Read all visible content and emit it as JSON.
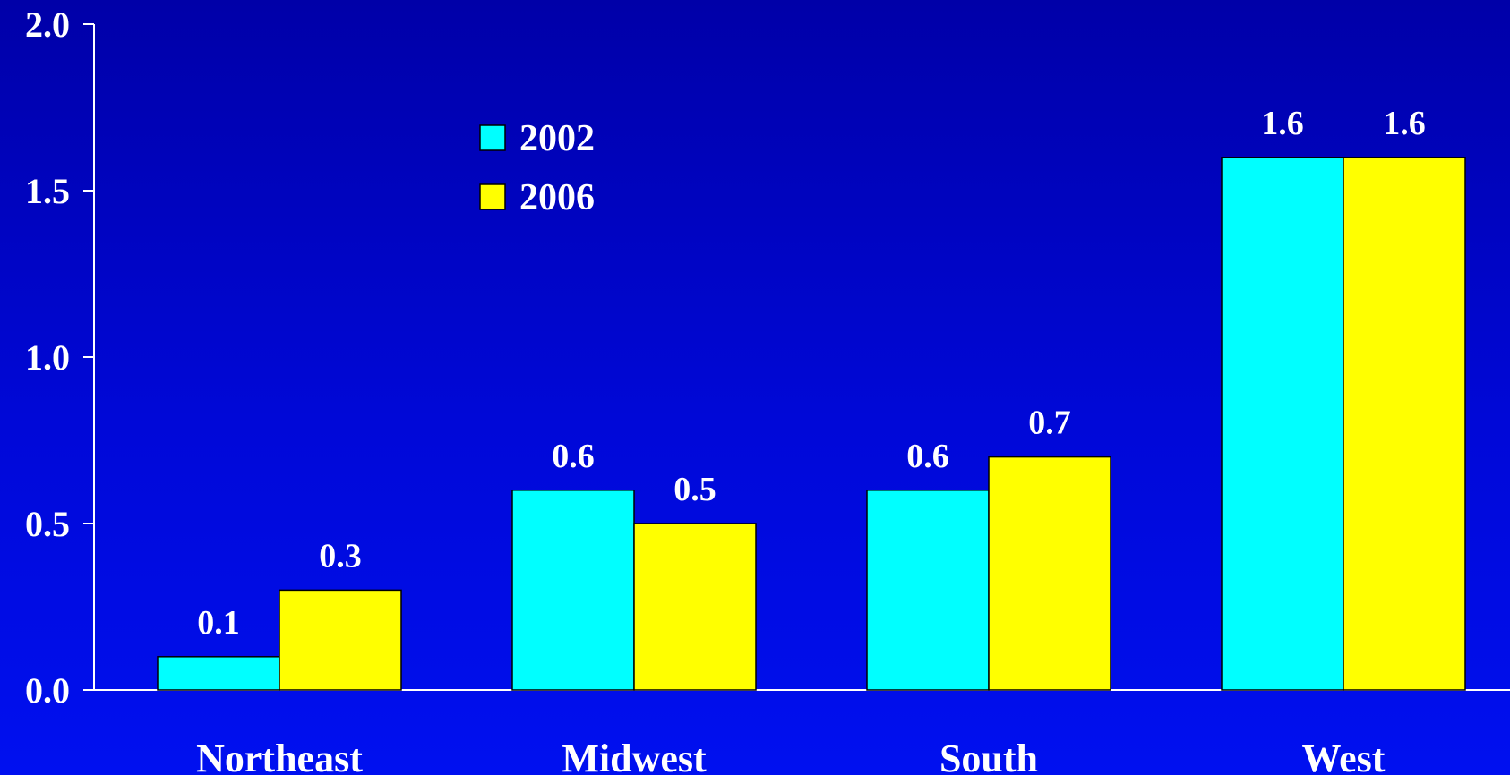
{
  "chart_data": {
    "type": "bar",
    "title": "",
    "xlabel": "",
    "ylabel": "",
    "categories": [
      "Northeast",
      "Midwest",
      "South",
      "West"
    ],
    "series": [
      {
        "name": "2002",
        "values": [
          0.1,
          0.6,
          0.6,
          1.6
        ],
        "color": "#00ffff"
      },
      {
        "name": "2006",
        "values": [
          0.3,
          0.5,
          0.7,
          1.6
        ],
        "color": "#ffff00"
      }
    ],
    "data_labels": [
      [
        "0.1",
        "0.6",
        "0.6",
        "1.6"
      ],
      [
        "0.3",
        "0.5",
        "0.7",
        "1.6"
      ]
    ],
    "ylim": [
      0,
      2.0
    ],
    "yticks": [
      "0.0",
      "0.5",
      "1.0",
      "1.5",
      "2.0"
    ],
    "grid": false,
    "legend": "upper-left-center"
  },
  "colors": {
    "background_top": "#0000a8",
    "background_bottom": "#0010f0",
    "axis": "#ffffff",
    "text": "#ffffff"
  }
}
